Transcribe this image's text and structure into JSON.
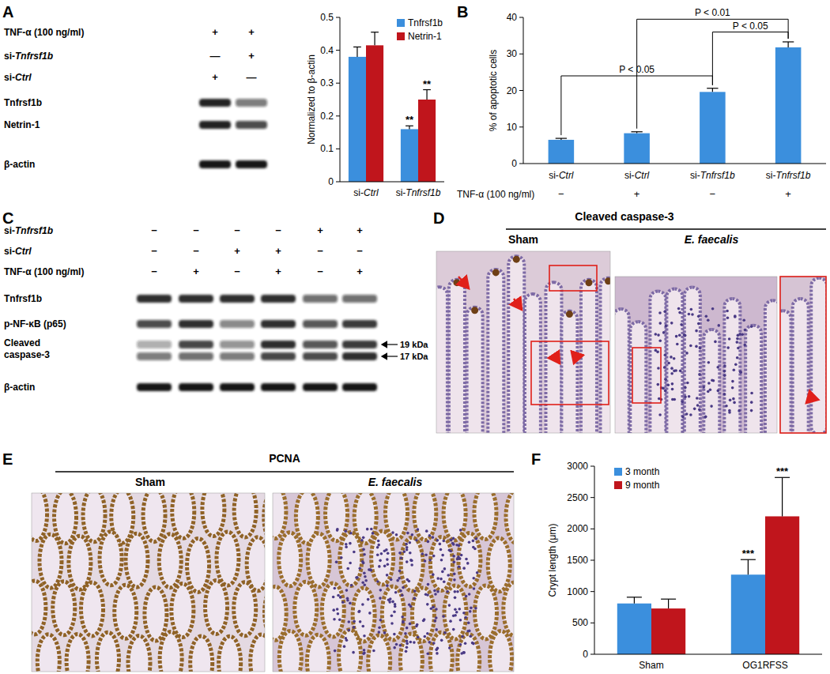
{
  "panels": [
    "A",
    "B",
    "C",
    "D",
    "E",
    "F"
  ],
  "blot_a": {
    "conditions": [
      {
        "label": "TNF-α (100 ng/ml)",
        "signs": [
          "+",
          "+"
        ]
      },
      {
        "label": "si-Tnfrsf1b",
        "signs": [
          "—",
          "+"
        ]
      },
      {
        "label": "si-Ctrl",
        "signs": [
          "+",
          "—"
        ]
      }
    ],
    "bands": [
      {
        "label": "Tnfrsf1b",
        "intensity": [
          0.95,
          0.55
        ]
      },
      {
        "label": "Netrin-1",
        "intensity": [
          0.95,
          0.75
        ]
      },
      {
        "label": "β-actin",
        "intensity": [
          1,
          1
        ]
      }
    ]
  },
  "blot_c": {
    "conditions": [
      {
        "label": "si-Tnfrsf1b",
        "signs": [
          "−",
          "−",
          "−",
          "−",
          "+",
          "+"
        ]
      },
      {
        "label": "si-Ctrl",
        "signs": [
          "−",
          "−",
          "+",
          "+",
          "−",
          "−"
        ]
      },
      {
        "label": "TNF-α (100 ng/ml)",
        "signs": [
          "−",
          "+",
          "−",
          "+",
          "−",
          "+"
        ]
      }
    ],
    "bands": [
      {
        "label": "Tnfrsf1b",
        "intensity": [
          0.9,
          0.9,
          0.9,
          0.9,
          0.6,
          0.6
        ]
      },
      {
        "label": "p-NF-κB (p65)",
        "intensity": [
          0.75,
          0.9,
          0.5,
          0.9,
          0.7,
          0.85
        ]
      },
      {
        "label": "Cleaved caspase-3",
        "bands": [
          {
            "size": "19 kDa",
            "intensity": [
              0.35,
              0.8,
              0.45,
              0.9,
              0.7,
              0.85
            ]
          },
          {
            "size": "17 kDa",
            "intensity": [
              0.55,
              0.6,
              0.55,
              0.8,
              0.75,
              0.9
            ]
          }
        ]
      },
      {
        "label": "β-actin",
        "intensity": [
          1,
          1,
          1,
          1,
          1,
          1
        ]
      }
    ]
  },
  "image_d": {
    "title": "Cleaved caspase-3",
    "groups": [
      "Sham",
      "E. faecalis"
    ]
  },
  "image_e": {
    "title": "PCNA",
    "groups": [
      "Sham",
      "E. faecalis"
    ]
  },
  "chart_data": [
    {
      "type": "bar",
      "ylabel": "Normalized to β-actin",
      "categories": [
        "si-Ctrl",
        "si-Tnfrsf1b"
      ],
      "series": [
        {
          "name": "Tnfrsf1b",
          "color": "#3b8fdd",
          "values": [
            0.38,
            0.16
          ],
          "errors": [
            0.03,
            0.01
          ],
          "annotations": [
            null,
            "**"
          ]
        },
        {
          "name": "Netrin-1",
          "color": "#c0151c",
          "values": [
            0.415,
            0.25
          ],
          "errors": [
            0.04,
            0.03
          ],
          "annotations": [
            null,
            "**"
          ]
        }
      ],
      "ylim": [
        0,
        0.5
      ],
      "yticks": [
        0,
        0.1,
        0.2,
        0.3,
        0.4,
        0.5
      ],
      "legend": "top-right"
    },
    {
      "type": "bar",
      "ylabel": "% of apoptotic cells",
      "categories": [
        "si-Ctrl",
        "si-Ctrl",
        "si-Tnfrsf1b",
        "si-Tnfrsf1b"
      ],
      "values": [
        6.5,
        8.3,
        19.6,
        31.8
      ],
      "errors": [
        0.4,
        0.4,
        1.0,
        1.5
      ],
      "color": "#3b8fdd",
      "treatment_label": "TNF-α (100 ng/ml)",
      "treatment": [
        "−",
        "+",
        "−",
        "+"
      ],
      "comparisons": [
        {
          "between": [
            0,
            2
          ],
          "y": 24,
          "label": "P < 0.05"
        },
        {
          "between": [
            2,
            3
          ],
          "y": 36,
          "label": "P < 0.05"
        },
        {
          "between": [
            1,
            3
          ],
          "y": 39.5,
          "label": "P < 0.01"
        }
      ],
      "ylim": [
        0,
        40
      ],
      "yticks": [
        0,
        10,
        20,
        30,
        40
      ]
    },
    {
      "type": "bar",
      "ylabel": "Crypt length (μm)",
      "categories": [
        "Sham",
        "OG1RFSS"
      ],
      "series": [
        {
          "name": "3 month",
          "color": "#3b8fdd",
          "values": [
            810,
            1270
          ],
          "errors": [
            100,
            240
          ],
          "annotations": [
            null,
            "***"
          ]
        },
        {
          "name": "9 month",
          "color": "#c0151c",
          "values": [
            730,
            2200
          ],
          "errors": [
            150,
            620
          ],
          "annotations": [
            null,
            "***"
          ]
        }
      ],
      "ylim": [
        0,
        3000
      ],
      "yticks": [
        0,
        500,
        1000,
        1500,
        2000,
        2500,
        3000
      ],
      "legend": "top-left"
    }
  ]
}
